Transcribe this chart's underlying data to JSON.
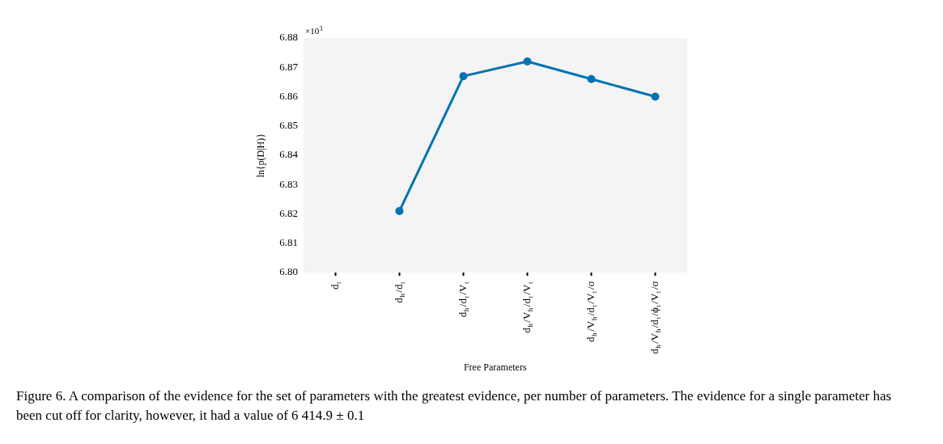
{
  "chart_data": {
    "type": "line",
    "xlabel": "Free Parameters",
    "ylabel": "ln{p(D|H)}",
    "categories": [
      "d$_{t}$",
      "d$_{h}$/d$_{t}$",
      "d$_{h}$/d$_{t}$/V$_{t}$",
      "d$_{h}$/V$_{h}$/d$_{t}$/V$_{t}$",
      "d$_{h}$/V$_{h}$/d$_{t}$/V$_{t}$/σ",
      "d$_{h}$/V$_{h}$/d$_{t}$/ϕ$_{t}$/V$_{t}$/σ"
    ],
    "series": [
      {
        "color": "#0173b2",
        "values": [
          null,
          6.821,
          6.867,
          6.872,
          6.866,
          6.86
        ]
      }
    ],
    "ylim": [
      6.8,
      6.88
    ],
    "yticks": [
      {
        "value": 6.8,
        "label": "6.80"
      },
      {
        "value": 6.81,
        "label": "6.81"
      },
      {
        "value": 6.82,
        "label": "6.82"
      },
      {
        "value": 6.83,
        "label": "6.83"
      },
      {
        "value": 6.84,
        "label": "6.84"
      },
      {
        "value": 6.85,
        "label": "6.85"
      },
      {
        "value": 6.86,
        "label": "6.86"
      },
      {
        "value": 6.87,
        "label": "6.87"
      },
      {
        "value": 6.88,
        "label": "6.88"
      }
    ],
    "grid": false,
    "legend": false,
    "marker": "circle",
    "line_style": "solid",
    "annotations": [
      "×10$^{3}$",
      "Figure 6. A comparison of the evidence for the set of parameters with the greatest evidence, per number of parameters. The evidence for a single parameter has been cut off for clarity, however, it had a value of 6 414.9 ± 0.1"
    ]
  }
}
